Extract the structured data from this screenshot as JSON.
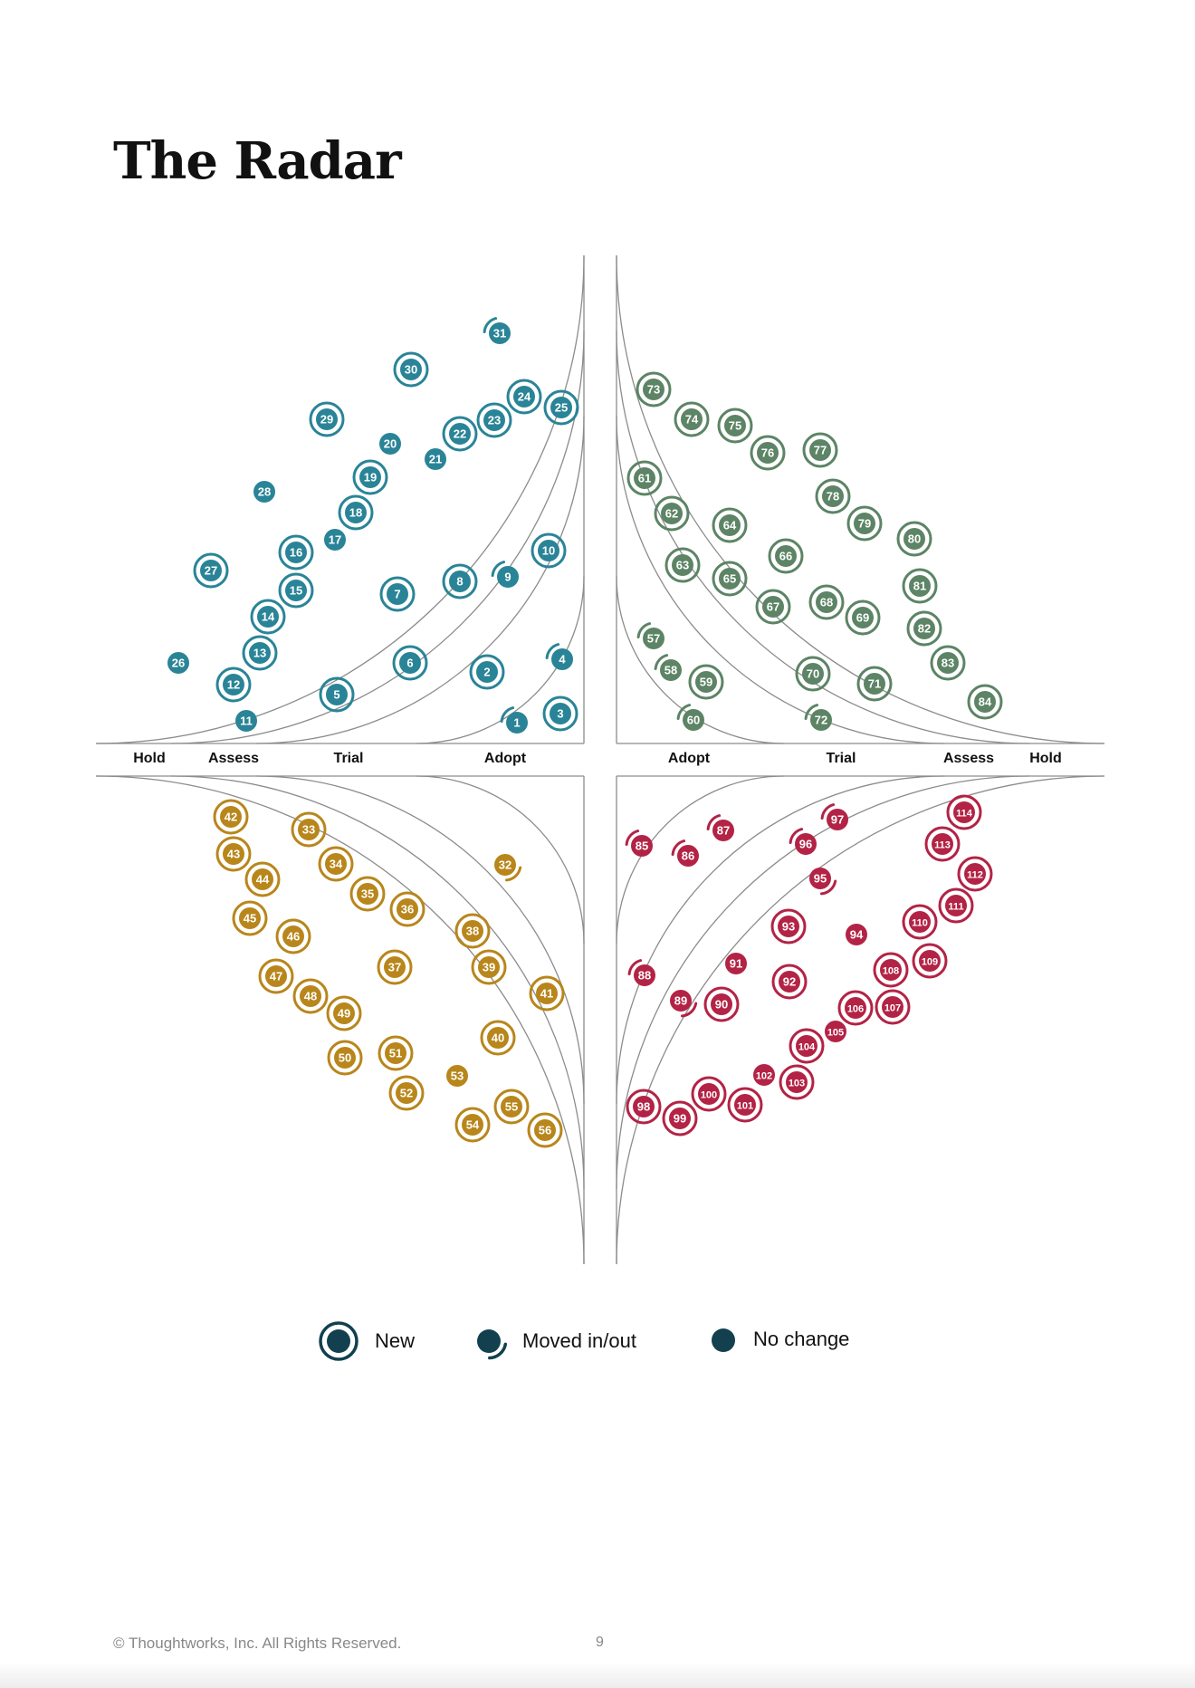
{
  "title": "The Radar",
  "colors": {
    "top_left": "#2a8497",
    "top_right": "#5c8465",
    "bottom_left": "#b8861b",
    "bottom_right": "#b32345",
    "legend": "#12404f",
    "ring_line": "#8c8c8c"
  },
  "rings": [
    "Adopt",
    "Trial",
    "Assess",
    "Hold"
  ],
  "ring_labels": {
    "left": {
      "hold": "Hold",
      "assess": "Assess",
      "trial": "Trial",
      "adopt": "Adopt"
    },
    "right": {
      "adopt": "Adopt",
      "trial": "Trial",
      "assess": "Assess",
      "hold": "Hold"
    }
  },
  "legend": {
    "new": "New",
    "moved": "Moved in/out",
    "no_change": "No change"
  },
  "footer": {
    "copyright": "© Thoughtworks, Inc. All Rights Reserved.",
    "page_number": "9"
  },
  "blips_top_left": [
    [
      "1",
      "m"
    ],
    [
      "2",
      "n"
    ],
    [
      "3",
      "n"
    ],
    [
      "4",
      "m"
    ],
    [
      "5",
      "n"
    ],
    [
      "6",
      "n"
    ],
    [
      "7",
      "n"
    ],
    [
      "8",
      "n"
    ],
    [
      "9",
      "m"
    ],
    [
      "10",
      "n"
    ],
    [
      "11",
      "c"
    ],
    [
      "12",
      "n"
    ],
    [
      "13",
      "n"
    ],
    [
      "14",
      "n"
    ],
    [
      "15",
      "n"
    ],
    [
      "16",
      "n"
    ],
    [
      "17",
      "c"
    ],
    [
      "18",
      "n"
    ],
    [
      "19",
      "n"
    ],
    [
      "20",
      "c"
    ],
    [
      "21",
      "c"
    ],
    [
      "22",
      "n"
    ],
    [
      "23",
      "n"
    ],
    [
      "24",
      "n"
    ],
    [
      "25",
      "n"
    ],
    [
      "26",
      "c"
    ],
    [
      "27",
      "n"
    ],
    [
      "28",
      "c"
    ],
    [
      "29",
      "n"
    ],
    [
      "30",
      "n"
    ],
    [
      "31",
      "m"
    ]
  ],
  "blips_top_right": [
    [
      "57",
      "m"
    ],
    [
      "58",
      "m"
    ],
    [
      "59",
      "n"
    ],
    [
      "60",
      "m"
    ],
    [
      "61",
      "n"
    ],
    [
      "62",
      "n"
    ],
    [
      "63",
      "n"
    ],
    [
      "64",
      "n"
    ],
    [
      "65",
      "n"
    ],
    [
      "66",
      "n"
    ],
    [
      "67",
      "n"
    ],
    [
      "68",
      "n"
    ],
    [
      "69",
      "n"
    ],
    [
      "70",
      "n"
    ],
    [
      "71",
      "n"
    ],
    [
      "72",
      "m"
    ],
    [
      "73",
      "n"
    ],
    [
      "74",
      "n"
    ],
    [
      "75",
      "n"
    ],
    [
      "76",
      "n"
    ],
    [
      "77",
      "n"
    ],
    [
      "78",
      "n"
    ],
    [
      "79",
      "n"
    ],
    [
      "80",
      "n"
    ],
    [
      "81",
      "n"
    ],
    [
      "82",
      "n"
    ],
    [
      "83",
      "n"
    ],
    [
      "84",
      "n"
    ]
  ],
  "blips_bottom_left": [
    [
      "32",
      "m"
    ],
    [
      "33",
      "n"
    ],
    [
      "34",
      "n"
    ],
    [
      "35",
      "n"
    ],
    [
      "36",
      "n"
    ],
    [
      "37",
      "n"
    ],
    [
      "38",
      "n"
    ],
    [
      "39",
      "n"
    ],
    [
      "40",
      "n"
    ],
    [
      "41",
      "n"
    ],
    [
      "42",
      "n"
    ],
    [
      "43",
      "n"
    ],
    [
      "44",
      "n"
    ],
    [
      "45",
      "n"
    ],
    [
      "46",
      "n"
    ],
    [
      "47",
      "n"
    ],
    [
      "48",
      "n"
    ],
    [
      "49",
      "n"
    ],
    [
      "50",
      "n"
    ],
    [
      "51",
      "n"
    ],
    [
      "52",
      "n"
    ],
    [
      "53",
      "c"
    ],
    [
      "54",
      "n"
    ],
    [
      "55",
      "n"
    ],
    [
      "56",
      "n"
    ]
  ],
  "blips_bottom_right": [
    [
      "85",
      "m"
    ],
    [
      "86",
      "m"
    ],
    [
      "87",
      "m"
    ],
    [
      "88",
      "m"
    ],
    [
      "89",
      "m"
    ],
    [
      "90",
      "n"
    ],
    [
      "91",
      "c"
    ],
    [
      "92",
      "n"
    ],
    [
      "93",
      "n"
    ],
    [
      "94",
      "c"
    ],
    [
      "95",
      "m"
    ],
    [
      "96",
      "m"
    ],
    [
      "97",
      "m"
    ],
    [
      "98",
      "n"
    ],
    [
      "99",
      "n"
    ],
    [
      "100",
      "n"
    ],
    [
      "101",
      "n"
    ],
    [
      "102",
      "c"
    ],
    [
      "103",
      "n"
    ],
    [
      "104",
      "n"
    ],
    [
      "105",
      "c"
    ],
    [
      "106",
      "n"
    ],
    [
      "107",
      "n"
    ],
    [
      "108",
      "n"
    ],
    [
      "109",
      "n"
    ],
    [
      "110",
      "n"
    ],
    [
      "111",
      "n"
    ],
    [
      "112",
      "n"
    ],
    [
      "113",
      "n"
    ],
    [
      "114",
      "n"
    ]
  ]
}
